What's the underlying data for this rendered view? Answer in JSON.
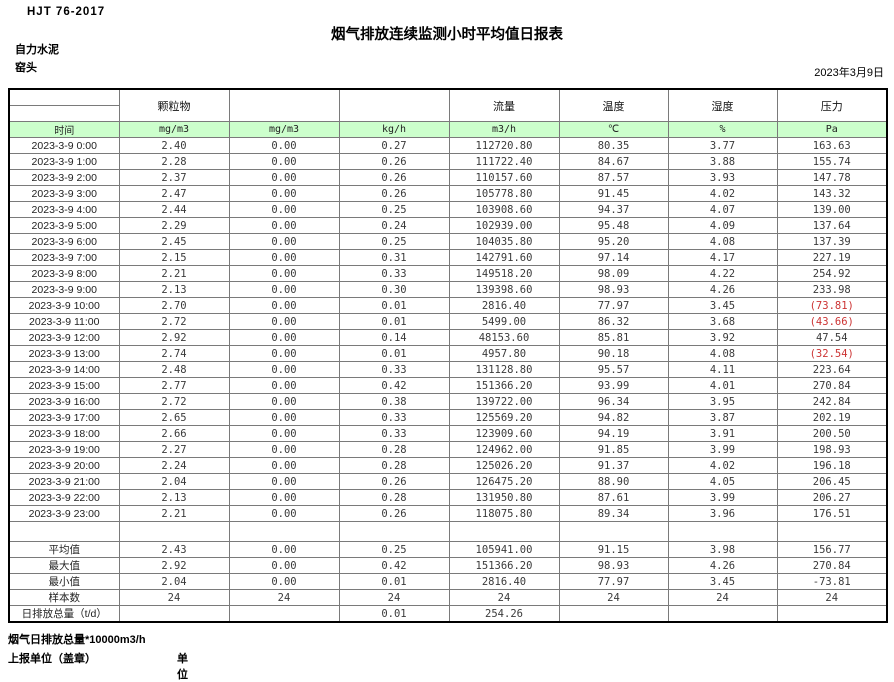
{
  "report": {
    "standard": "HJT  76-2017",
    "title": "烟气排放连续监测小时平均值日报表",
    "company": "自力水泥",
    "monitoring_point": "窑头",
    "date": "2023年3月9日"
  },
  "table": {
    "time_header": "时间",
    "group_headers": [
      "",
      "颗粒物",
      "",
      "",
      "流量",
      "温度",
      "湿度",
      "压力"
    ],
    "units": [
      "mg/m3",
      "mg/m3",
      "kg/h",
      "m3/h",
      "℃",
      "%",
      "Pa"
    ],
    "rows": [
      {
        "time": "2023-3-9 0:00",
        "values": [
          "2.40",
          "0.00",
          "0.27",
          "112720.80",
          "80.35",
          "3.77",
          "163.63"
        ]
      },
      {
        "time": "2023-3-9 1:00",
        "values": [
          "2.28",
          "0.00",
          "0.26",
          "111722.40",
          "84.67",
          "3.88",
          "155.74"
        ]
      },
      {
        "time": "2023-3-9 2:00",
        "values": [
          "2.37",
          "0.00",
          "0.26",
          "110157.60",
          "87.57",
          "3.93",
          "147.78"
        ]
      },
      {
        "time": "2023-3-9 3:00",
        "values": [
          "2.47",
          "0.00",
          "0.26",
          "105778.80",
          "91.45",
          "4.02",
          "143.32"
        ]
      },
      {
        "time": "2023-3-9 4:00",
        "values": [
          "2.44",
          "0.00",
          "0.25",
          "103908.60",
          "94.37",
          "4.07",
          "139.00"
        ]
      },
      {
        "time": "2023-3-9 5:00",
        "values": [
          "2.29",
          "0.00",
          "0.24",
          "102939.00",
          "95.48",
          "4.09",
          "137.64"
        ]
      },
      {
        "time": "2023-3-9 6:00",
        "values": [
          "2.45",
          "0.00",
          "0.25",
          "104035.80",
          "95.20",
          "4.08",
          "137.39"
        ]
      },
      {
        "time": "2023-3-9 7:00",
        "values": [
          "2.15",
          "0.00",
          "0.31",
          "142791.60",
          "97.14",
          "4.17",
          "227.19"
        ]
      },
      {
        "time": "2023-3-9 8:00",
        "values": [
          "2.21",
          "0.00",
          "0.33",
          "149518.20",
          "98.09",
          "4.22",
          "254.92"
        ]
      },
      {
        "time": "2023-3-9 9:00",
        "values": [
          "2.13",
          "0.00",
          "0.30",
          "139398.60",
          "98.93",
          "4.26",
          "233.98"
        ]
      },
      {
        "time": "2023-3-9 10:00",
        "values": [
          "2.70",
          "0.00",
          "0.01",
          "2816.40",
          "77.97",
          "3.45",
          "(73.81)"
        ]
      },
      {
        "time": "2023-3-9 11:00",
        "values": [
          "2.72",
          "0.00",
          "0.01",
          "5499.00",
          "86.32",
          "3.68",
          "(43.66)"
        ]
      },
      {
        "time": "2023-3-9 12:00",
        "values": [
          "2.92",
          "0.00",
          "0.14",
          "48153.60",
          "85.81",
          "3.92",
          "47.54"
        ]
      },
      {
        "time": "2023-3-9 13:00",
        "values": [
          "2.74",
          "0.00",
          "0.01",
          "4957.80",
          "90.18",
          "4.08",
          "(32.54)"
        ]
      },
      {
        "time": "2023-3-9 14:00",
        "values": [
          "2.48",
          "0.00",
          "0.33",
          "131128.80",
          "95.57",
          "4.11",
          "223.64"
        ]
      },
      {
        "time": "2023-3-9 15:00",
        "values": [
          "2.77",
          "0.00",
          "0.42",
          "151366.20",
          "93.99",
          "4.01",
          "270.84"
        ]
      },
      {
        "time": "2023-3-9 16:00",
        "values": [
          "2.72",
          "0.00",
          "0.38",
          "139722.00",
          "96.34",
          "3.95",
          "242.84"
        ]
      },
      {
        "time": "2023-3-9 17:00",
        "values": [
          "2.65",
          "0.00",
          "0.33",
          "125569.20",
          "94.82",
          "3.87",
          "202.19"
        ]
      },
      {
        "time": "2023-3-9 18:00",
        "values": [
          "2.66",
          "0.00",
          "0.33",
          "123909.60",
          "94.19",
          "3.91",
          "200.50"
        ]
      },
      {
        "time": "2023-3-9 19:00",
        "values": [
          "2.27",
          "0.00",
          "0.28",
          "124962.00",
          "91.85",
          "3.99",
          "198.93"
        ]
      },
      {
        "time": "2023-3-9 20:00",
        "values": [
          "2.24",
          "0.00",
          "0.28",
          "125026.20",
          "91.37",
          "4.02",
          "196.18"
        ]
      },
      {
        "time": "2023-3-9 21:00",
        "values": [
          "2.04",
          "0.00",
          "0.26",
          "126475.20",
          "88.90",
          "4.05",
          "206.45"
        ]
      },
      {
        "time": "2023-3-9 22:00",
        "values": [
          "2.13",
          "0.00",
          "0.28",
          "131950.80",
          "87.61",
          "3.99",
          "206.27"
        ]
      },
      {
        "time": "2023-3-9 23:00",
        "values": [
          "2.21",
          "0.00",
          "0.26",
          "118075.80",
          "89.34",
          "3.96",
          "176.51"
        ]
      }
    ],
    "summary_rows": [
      {
        "label": "平均值",
        "values": [
          "2.43",
          "0.00",
          "0.25",
          "105941.00",
          "91.15",
          "3.98",
          "156.77"
        ]
      },
      {
        "label": "最大值",
        "values": [
          "2.92",
          "0.00",
          "0.42",
          "151366.20",
          "98.93",
          "4.26",
          "270.84"
        ]
      },
      {
        "label": "最小值",
        "values": [
          "2.04",
          "0.00",
          "0.01",
          "2816.40",
          "77.97",
          "3.45",
          "-73.81"
        ]
      },
      {
        "label": "样本数",
        "values": [
          "24",
          "24",
          "24",
          "24",
          "24",
          "24",
          "24"
        ]
      },
      {
        "label": "日排放总量（t/d）",
        "values": [
          "",
          "",
          "0.01",
          "254.26",
          "",
          "",
          ""
        ]
      }
    ]
  },
  "footer": {
    "note": "烟气日排放总量*10000m3/h",
    "report_unit_label": "上报单位（盖章）",
    "unit_label": "单位"
  },
  "colors": {
    "unit_row_bg": "#ccffcc",
    "negative_value": "#cc3333"
  }
}
